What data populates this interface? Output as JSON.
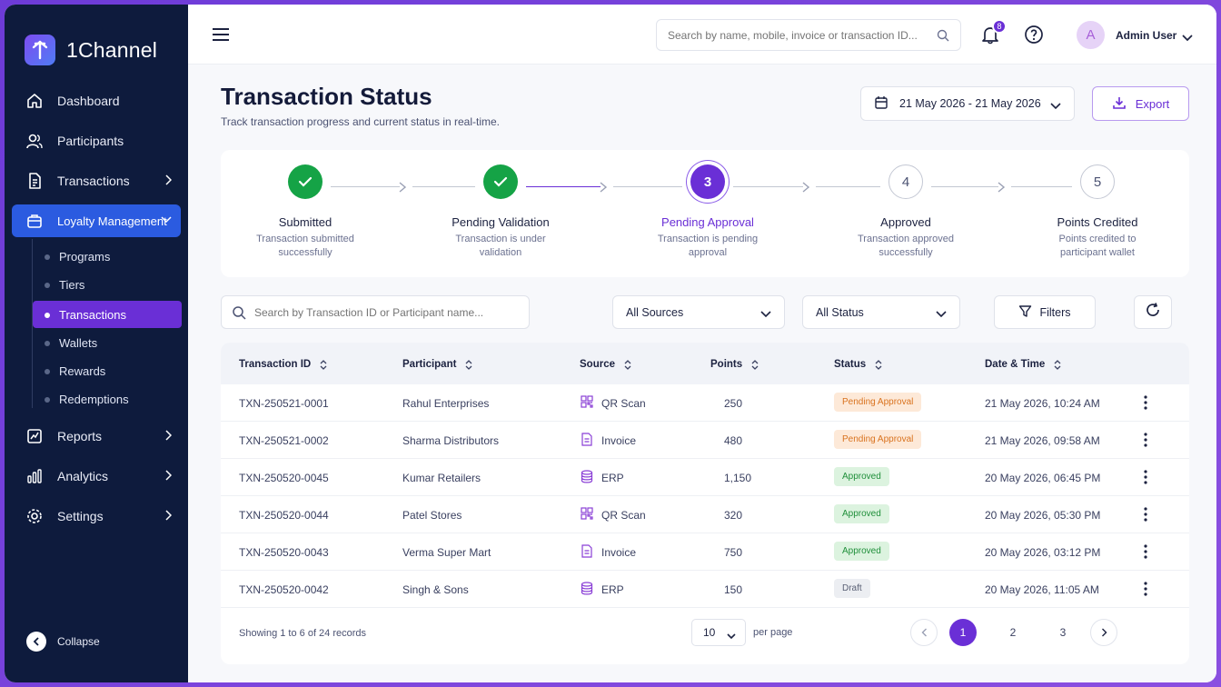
{
  "app": {
    "name": "1Channel"
  },
  "sidebar": {
    "items": [
      {
        "label": "Dashboard"
      },
      {
        "label": "Participants"
      },
      {
        "label": "Transactions"
      },
      {
        "label": "Loyalty Management"
      },
      {
        "label": "Reports"
      },
      {
        "label": "Analytics"
      },
      {
        "label": "Settings"
      }
    ],
    "subitems": [
      {
        "label": "Programs"
      },
      {
        "label": "Tiers"
      },
      {
        "label": "Transactions"
      },
      {
        "label": "Wallets"
      },
      {
        "label": "Rewards"
      },
      {
        "label": "Redemptions"
      }
    ],
    "collapse_label": "Collapse"
  },
  "topbar": {
    "search_placeholder": "Search by name, mobile, invoice or transaction ID...",
    "notification_count": "8",
    "avatar_initial": "A",
    "user_name": "Admin User"
  },
  "page": {
    "title": "Transaction Status",
    "subtitle": "Track transaction progress and current status in real-time.",
    "date_range": "21 May 2026 - 21 May 2026",
    "export_label": "Export"
  },
  "steps": [
    {
      "state": "done",
      "number": "",
      "label": "Submitted",
      "desc": "Transaction submitted successfully"
    },
    {
      "state": "done",
      "number": "",
      "label": "Pending Validation",
      "desc": "Transaction is under validation"
    },
    {
      "state": "current",
      "number": "3",
      "label": "Pending Approval",
      "desc": "Transaction is pending approval"
    },
    {
      "state": "todo",
      "number": "4",
      "label": "Approved",
      "desc": "Transaction approved successfully"
    },
    {
      "state": "todo",
      "number": "5",
      "label": "Points Credited",
      "desc": "Points credited to participant wallet"
    }
  ],
  "filters": {
    "search_placeholder": "Search by Transaction ID or Participant name...",
    "source_value": "All Sources",
    "status_value": "All Status",
    "filters_label": "Filters"
  },
  "table": {
    "headers": [
      "Transaction ID",
      "Participant",
      "Source",
      "Points",
      "Status",
      "Date & Time"
    ],
    "rows": [
      {
        "id": "TXN-250521-0001",
        "participant": "Rahul Enterprises",
        "source": "QR Scan",
        "source_icon": "qr-icon",
        "points": "250",
        "status": "Pending Approval",
        "status_type": "pending",
        "datetime": "21 May 2026, 10:24 AM"
      },
      {
        "id": "TXN-250521-0002",
        "participant": "Sharma Distributors",
        "source": "Invoice",
        "source_icon": "invoice-icon",
        "points": "480",
        "status": "Pending Approval",
        "status_type": "pending",
        "datetime": "21 May 2026, 09:58 AM"
      },
      {
        "id": "TXN-250520-0045",
        "participant": "Kumar Retailers",
        "source": "ERP",
        "source_icon": "database-icon",
        "points": "1,150",
        "status": "Approved",
        "status_type": "approved",
        "datetime": "20 May 2026, 06:45 PM"
      },
      {
        "id": "TXN-250520-0044",
        "participant": "Patel Stores",
        "source": "QR Scan",
        "source_icon": "qr-icon",
        "points": "320",
        "status": "Approved",
        "status_type": "approved",
        "datetime": "20 May 2026, 05:30 PM"
      },
      {
        "id": "TXN-250520-0043",
        "participant": "Verma Super Mart",
        "source": "Invoice",
        "source_icon": "invoice-icon",
        "points": "750",
        "status": "Approved",
        "status_type": "approved",
        "datetime": "20 May 2026, 03:12 PM"
      },
      {
        "id": "TXN-250520-0042",
        "participant": "Singh & Sons",
        "source": "ERP",
        "source_icon": "database-icon",
        "points": "150",
        "status": "Draft",
        "status_type": "draft",
        "datetime": "20 May 2026, 11:05 AM"
      }
    ]
  },
  "pagination": {
    "showing": "Showing 1 to 6 of 24 records",
    "per_page_value": "10",
    "per_page_label": "per page",
    "pages": [
      "1",
      "2",
      "3"
    ],
    "current_page": "1"
  },
  "colors": {
    "accent": "#6a2fd6",
    "sidebar": "#0e1b3d",
    "nav_active": "#2b5be0",
    "success": "#15a346"
  }
}
